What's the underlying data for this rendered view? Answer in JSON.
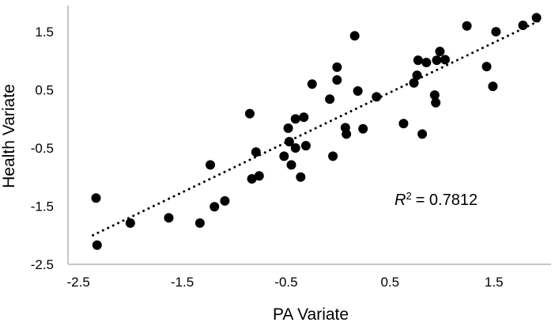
{
  "chart": {
    "x_axis_title": "PA Variate",
    "y_axis_title": "Health Variate",
    "annotation": {
      "r_label": "R",
      "exponent": "2",
      "value_text": "= 0.7812"
    }
  },
  "chart_data": {
    "type": "scatter",
    "title": "",
    "xlabel": "PA Variate",
    "ylabel": "Health Variate",
    "xlim": [
      -2.6,
      2.05
    ],
    "ylim": [
      -2.5,
      1.95
    ],
    "x_ticks": [
      -2.5,
      -1.5,
      -0.5,
      0.5,
      1.5
    ],
    "y_ticks": [
      -2.5,
      -1.5,
      -0.5,
      0.5,
      1.5
    ],
    "grid": false,
    "legend": false,
    "marker_color": "#000000",
    "marker_radius_px": 6,
    "axis_line_color": "#c6c6c6",
    "annotation_text": "R² = 0.7812",
    "trendline": {
      "style": "dotted",
      "color": "#000000",
      "x1": -2.36,
      "y1": -2.0,
      "x2": 1.95,
      "y2": 1.7,
      "slope": 0.86,
      "intercept": 0.03,
      "r_squared": 0.7812
    },
    "points": [
      [
        -2.33,
        -1.36
      ],
      [
        -2.32,
        -2.17
      ],
      [
        -2.0,
        -1.79
      ],
      [
        -1.63,
        -1.7
      ],
      [
        -1.33,
        -1.79
      ],
      [
        -1.23,
        -0.79
      ],
      [
        -1.19,
        -1.51
      ],
      [
        -1.09,
        -1.41
      ],
      [
        -0.85,
        0.09
      ],
      [
        -0.83,
        -1.03
      ],
      [
        -0.76,
        -0.98
      ],
      [
        -0.79,
        -0.57
      ],
      [
        -0.48,
        -0.16
      ],
      [
        -0.47,
        -0.39
      ],
      [
        -0.41,
        -0.5
      ],
      [
        -0.31,
        -0.46
      ],
      [
        -0.52,
        -0.64
      ],
      [
        -0.45,
        -0.79
      ],
      [
        -0.41,
        0.0
      ],
      [
        -0.33,
        0.03
      ],
      [
        -0.36,
        -1.0
      ],
      [
        -0.25,
        0.6
      ],
      [
        -0.08,
        0.34
      ],
      [
        -0.05,
        -0.64
      ],
      [
        -0.01,
        0.89
      ],
      [
        -0.01,
        0.67
      ],
      [
        0.16,
        1.43
      ],
      [
        0.19,
        0.48
      ],
      [
        0.37,
        0.38
      ],
      [
        0.07,
        -0.15
      ],
      [
        0.08,
        -0.26
      ],
      [
        0.24,
        -0.17
      ],
      [
        0.77,
        1.01
      ],
      [
        0.85,
        0.97
      ],
      [
        0.95,
        1.01
      ],
      [
        1.03,
        1.02
      ],
      [
        0.98,
        1.16
      ],
      [
        0.76,
        0.75
      ],
      [
        0.73,
        0.62
      ],
      [
        0.93,
        0.41
      ],
      [
        0.94,
        0.28
      ],
      [
        0.63,
        -0.08
      ],
      [
        0.81,
        -0.26
      ],
      [
        1.24,
        1.6
      ],
      [
        1.43,
        0.9
      ],
      [
        1.49,
        0.56
      ],
      [
        1.52,
        1.5
      ],
      [
        1.78,
        1.61
      ],
      [
        1.91,
        1.74
      ]
    ]
  }
}
